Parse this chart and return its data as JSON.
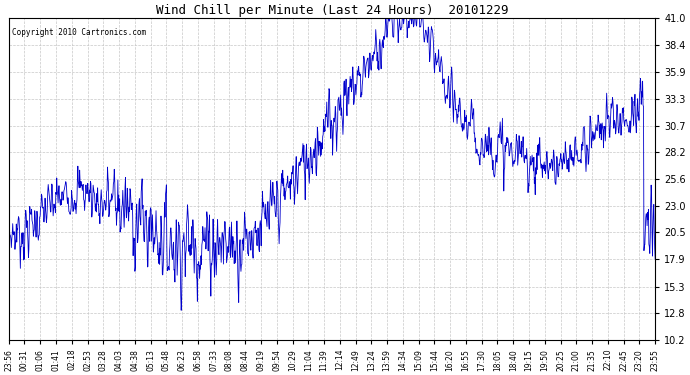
{
  "title": "Wind Chill per Minute (Last 24 Hours)  20101229",
  "copyright_text": "Copyright 2010 Cartronics.com",
  "line_color": "#0000CC",
  "background_color": "#ffffff",
  "grid_color": "#c8c8c8",
  "y_ticks": [
    10.2,
    12.8,
    15.3,
    17.9,
    20.5,
    23.0,
    25.6,
    28.2,
    30.7,
    33.3,
    35.9,
    38.4,
    41.0
  ],
  "ylim": [
    10.2,
    41.0
  ],
  "x_tick_labels": [
    "23:56",
    "00:31",
    "01:06",
    "01:41",
    "02:18",
    "02:53",
    "03:28",
    "04:03",
    "04:38",
    "05:13",
    "05:48",
    "06:23",
    "06:58",
    "07:33",
    "08:08",
    "08:44",
    "09:19",
    "09:54",
    "10:29",
    "11:04",
    "11:39",
    "12:14",
    "12:49",
    "13:24",
    "13:59",
    "14:34",
    "15:09",
    "15:44",
    "16:20",
    "16:55",
    "17:30",
    "18:05",
    "18:40",
    "19:15",
    "19:50",
    "20:25",
    "21:00",
    "21:35",
    "22:10",
    "22:45",
    "23:20",
    "23:55"
  ],
  "num_points": 1440
}
